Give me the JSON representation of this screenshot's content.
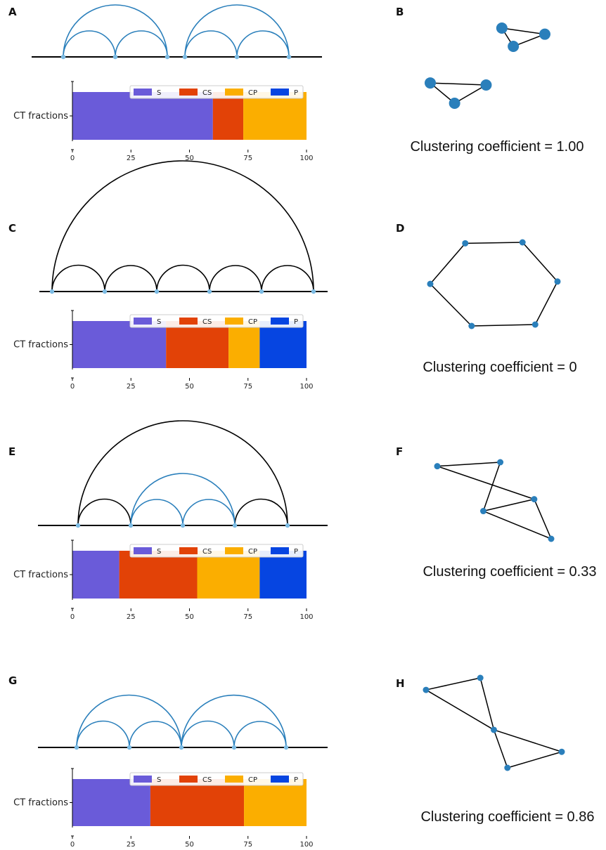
{
  "colors": {
    "S": "#6a5bd9",
    "CS": "#e24207",
    "CP": "#fbae00",
    "P": "#0645e1",
    "blue_arc": "#2a7fbb",
    "black_arc": "#000000",
    "node": "#2a7fbb",
    "node_light": "#7cbbe3"
  },
  "chart_data": [
    {
      "panel": "A",
      "type": "arc",
      "nodes": [
        1,
        2,
        3,
        4,
        5,
        6
      ],
      "arcs": [
        {
          "from": 1,
          "to": 2,
          "color": "blue"
        },
        {
          "from": 2,
          "to": 3,
          "color": "blue"
        },
        {
          "from": 1,
          "to": 3,
          "color": "blue"
        },
        {
          "from": 4,
          "to": 5,
          "color": "blue"
        },
        {
          "from": 5,
          "to": 6,
          "color": "blue"
        },
        {
          "from": 4,
          "to": 6,
          "color": "blue"
        }
      ],
      "bar": {
        "type": "bar",
        "ylabel": "CT fractions",
        "ticks": [
          "0",
          "25",
          "50",
          "75",
          "100"
        ],
        "legend": [
          "S",
          "CS",
          "CP",
          "P"
        ],
        "series": [
          {
            "name": "S",
            "values": [
              60
            ]
          },
          {
            "name": "CS",
            "values": [
              13
            ]
          },
          {
            "name": "CP",
            "values": [
              27
            ]
          },
          {
            "name": "P",
            "values": [
              0
            ]
          }
        ]
      }
    },
    {
      "panel": "B",
      "type": "network",
      "label": "Clustering coefficient = 1.00",
      "nodes": [
        [
          2.5,
          0
        ],
        [
          4.0,
          -0.15
        ],
        [
          2.9,
          -0.45
        ],
        [
          0.0,
          -1.35
        ],
        [
          1.95,
          -1.4
        ],
        [
          0.85,
          -1.85
        ]
      ],
      "edges": [
        [
          0,
          1
        ],
        [
          1,
          2
        ],
        [
          0,
          2
        ],
        [
          3,
          4
        ],
        [
          4,
          5
        ],
        [
          3,
          5
        ]
      ]
    },
    {
      "panel": "C",
      "type": "arc",
      "nodes": [
        1,
        2,
        3,
        4,
        5,
        6
      ],
      "arcs": [
        {
          "from": 1,
          "to": 2,
          "color": "black"
        },
        {
          "from": 2,
          "to": 3,
          "color": "black"
        },
        {
          "from": 3,
          "to": 4,
          "color": "black"
        },
        {
          "from": 4,
          "to": 5,
          "color": "black"
        },
        {
          "from": 5,
          "to": 6,
          "color": "black"
        },
        {
          "from": 1,
          "to": 6,
          "color": "black"
        }
      ],
      "bar": {
        "type": "bar",
        "ylabel": "CT fractions",
        "ticks": [
          "0",
          "25",
          "50",
          "75",
          "100"
        ],
        "legend": [
          "S",
          "CS",
          "CP",
          "P"
        ],
        "series": [
          {
            "name": "S",
            "values": [
              40
            ]
          },
          {
            "name": "CS",
            "values": [
              26.7
            ]
          },
          {
            "name": "CP",
            "values": [
              13.3
            ]
          },
          {
            "name": "P",
            "values": [
              20
            ]
          }
        ]
      }
    },
    {
      "panel": "D",
      "type": "network",
      "label": "Clustering coefficient = 0",
      "nodes": [
        [
          0.55,
          0.85
        ],
        [
          1.45,
          0.87
        ],
        [
          2.0,
          0.05
        ],
        [
          1.65,
          -0.85
        ],
        [
          0.65,
          -0.88
        ],
        [
          0.0,
          0.0
        ]
      ],
      "edges": [
        [
          0,
          1
        ],
        [
          1,
          2
        ],
        [
          2,
          3
        ],
        [
          3,
          4
        ],
        [
          4,
          5
        ],
        [
          5,
          0
        ]
      ]
    },
    {
      "panel": "E",
      "type": "arc",
      "nodes": [
        1,
        2,
        3,
        4,
        5
      ],
      "arcs": [
        {
          "from": 1,
          "to": 2,
          "color": "black"
        },
        {
          "from": 4,
          "to": 5,
          "color": "black"
        },
        {
          "from": 1,
          "to": 5,
          "color": "black"
        },
        {
          "from": 2,
          "to": 3,
          "color": "blue"
        },
        {
          "from": 3,
          "to": 4,
          "color": "blue"
        },
        {
          "from": 2,
          "to": 4,
          "color": "blue"
        }
      ],
      "bar": {
        "type": "bar",
        "ylabel": "CT fractions",
        "ticks": [
          "0",
          "25",
          "50",
          "75",
          "100"
        ],
        "legend": [
          "S",
          "CS",
          "CP",
          "P"
        ],
        "series": [
          {
            "name": "S",
            "values": [
              20
            ]
          },
          {
            "name": "CS",
            "values": [
              33.3
            ]
          },
          {
            "name": "CP",
            "values": [
              26.7
            ]
          },
          {
            "name": "P",
            "values": [
              20
            ]
          }
        ]
      }
    },
    {
      "panel": "F",
      "type": "network",
      "label": "Clustering coefficient = 0.33",
      "nodes": [
        [
          0.0,
          0.9
        ],
        [
          1.3,
          1.05
        ],
        [
          0.95,
          -0.8
        ],
        [
          2.0,
          -0.35
        ],
        [
          2.35,
          -1.85
        ]
      ],
      "edges": [
        [
          0,
          1
        ],
        [
          0,
          3
        ],
        [
          1,
          2
        ],
        [
          2,
          3
        ],
        [
          2,
          4
        ],
        [
          3,
          4
        ]
      ]
    },
    {
      "panel": "G",
      "type": "arc",
      "nodes": [
        1,
        2,
        3,
        4,
        5
      ],
      "arcs": [
        {
          "from": 1,
          "to": 2,
          "color": "blue"
        },
        {
          "from": 2,
          "to": 3,
          "color": "blue"
        },
        {
          "from": 1,
          "to": 3,
          "color": "blue"
        },
        {
          "from": 3,
          "to": 4,
          "color": "blue"
        },
        {
          "from": 4,
          "to": 5,
          "color": "blue"
        },
        {
          "from": 3,
          "to": 5,
          "color": "blue"
        }
      ],
      "bar": {
        "type": "bar",
        "ylabel": "CT fractions",
        "ticks": [
          "0",
          "25",
          "50",
          "75",
          "100"
        ],
        "legend": [
          "S",
          "CS",
          "CP",
          "P"
        ],
        "series": [
          {
            "name": "S",
            "values": [
              33.3
            ]
          },
          {
            "name": "CS",
            "values": [
              40
            ]
          },
          {
            "name": "CP",
            "values": [
              26.7
            ]
          },
          {
            "name": "P",
            "values": [
              0
            ]
          }
        ]
      }
    },
    {
      "panel": "H",
      "type": "network",
      "label": "Clustering coefficient = 0.86",
      "nodes": [
        [
          0.0,
          1.0
        ],
        [
          1.0,
          1.3
        ],
        [
          1.25,
          0.0
        ],
        [
          2.5,
          -0.55
        ],
        [
          1.5,
          -0.95
        ]
      ],
      "edges": [
        [
          0,
          1
        ],
        [
          0,
          2
        ],
        [
          1,
          2
        ],
        [
          2,
          3
        ],
        [
          2,
          4
        ],
        [
          3,
          4
        ]
      ]
    }
  ]
}
